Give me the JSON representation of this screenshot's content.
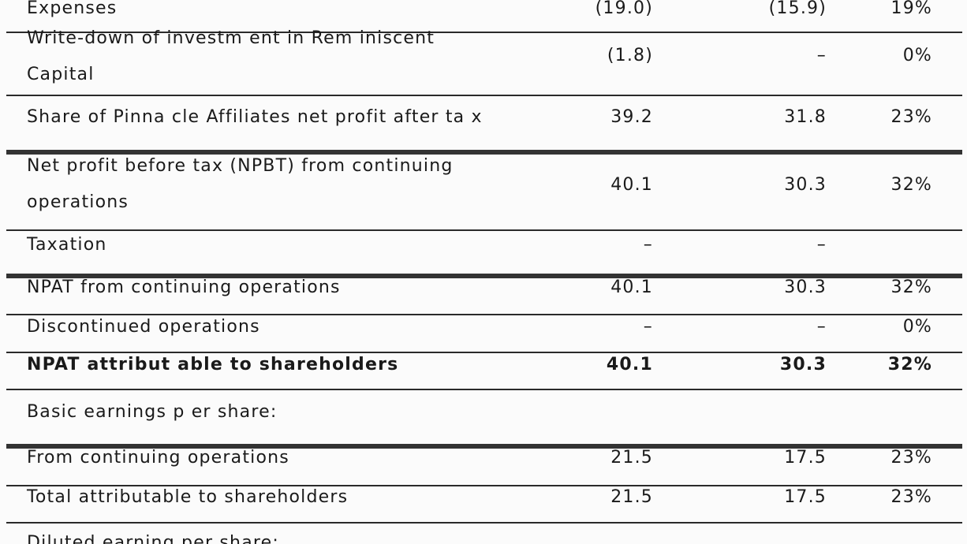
{
  "rows": [
    {
      "label": "Expenses",
      "v1": "(19.0)",
      "v2": "(15.9)",
      "v3": "19%"
    },
    {
      "label": "Write-down of investm ent in Rem iniscent Capital",
      "v1": "(1.8)",
      "v2": "–",
      "v3": "0%"
    },
    {
      "label": "Share of Pinna cle Affiliates net profit after ta x",
      "v1": "39.2",
      "v2": "31.8",
      "v3": "23%"
    },
    {
      "label": "Net profit before tax (NPBT) from continuing operations",
      "v1": "40.1",
      "v2": "30.3",
      "v3": "32%"
    },
    {
      "label": "Taxation",
      "v1": "–",
      "v2": "–",
      "v3": ""
    },
    {
      "label": "NPAT from continuing operations",
      "v1": "40.1",
      "v2": "30.3",
      "v3": "32%"
    },
    {
      "label": "Discontinued operations",
      "v1": "–",
      "v2": "–",
      "v3": "0%"
    },
    {
      "label": "NPAT attribut able to shareholders",
      "v1": "40.1",
      "v2": "30.3",
      "v3": "32%"
    },
    {
      "label": "Basic earnings p er share:",
      "v1": "",
      "v2": "",
      "v3": ""
    },
    {
      "label": "From continuing operations",
      "v1": "21.5",
      "v2": "17.5",
      "v3": "23%"
    },
    {
      "label": "Total attributable to shareholders",
      "v1": "21.5",
      "v2": "17.5",
      "v3": "23%"
    },
    {
      "label": "Diluted earning per share:",
      "v1": "",
      "v2": "",
      "v3": ""
    }
  ]
}
